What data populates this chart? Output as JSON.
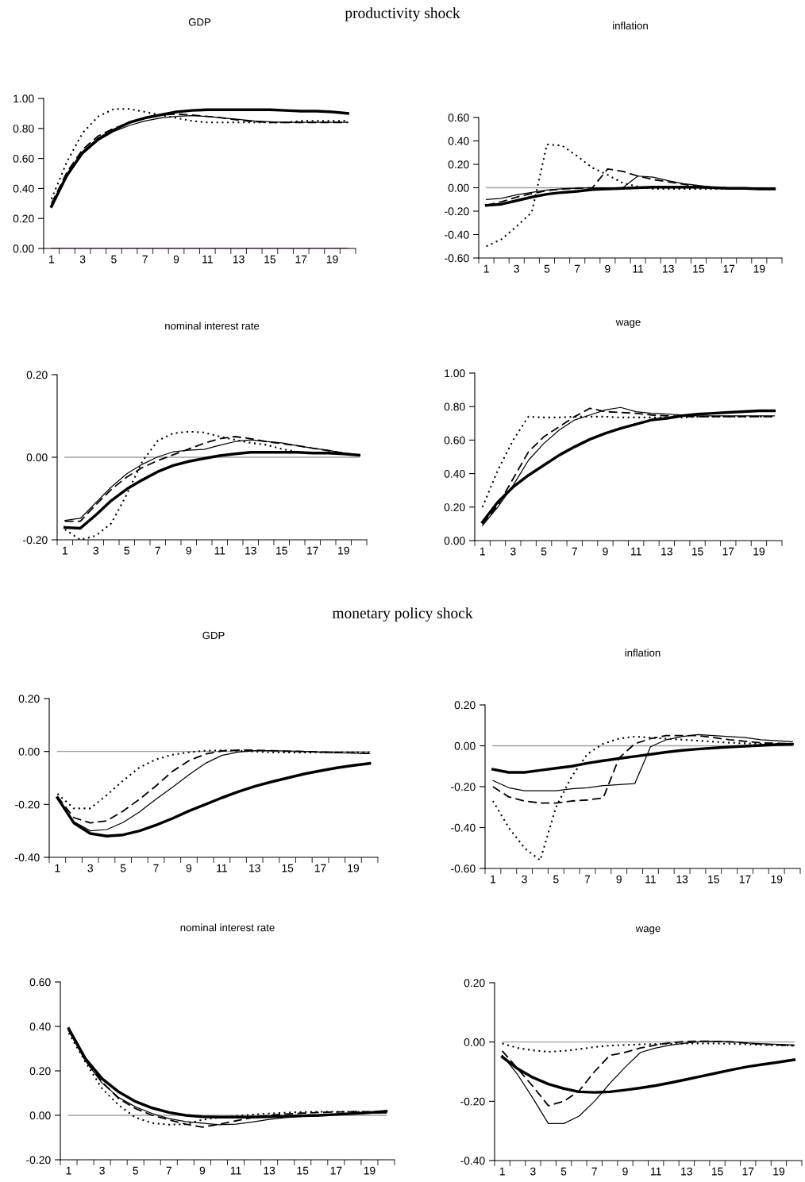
{
  "chart_data": [
    {
      "type": "line",
      "title": "GDP",
      "annotations": [
        "productivity shock"
      ],
      "categories": [
        "1",
        null,
        "3",
        null,
        "5",
        null,
        "7",
        null,
        "9",
        null,
        "11",
        null,
        "13",
        null,
        "15",
        null,
        "17",
        null,
        "19",
        null
      ],
      "ylim": [
        0,
        1
      ],
      "yticks": [
        {
          "value": 0,
          "label": "0.00"
        },
        {
          "value": 0.2,
          "label": "0.20"
        },
        {
          "value": 0.4,
          "label": "0.40"
        },
        {
          "value": 0.6,
          "label": "0.60"
        },
        {
          "value": 0.8,
          "label": "0.80"
        },
        {
          "value": 1,
          "label": "1.00"
        }
      ],
      "ref_lines": [
        {
          "axis": "y",
          "value": 0,
          "color": "#800080"
        }
      ],
      "grid": false,
      "legend": false,
      "marker": "none",
      "series": [
        {
          "color": "#000000",
          "line_style": "solid",
          "values": [
            0.28,
            0.49,
            0.64,
            0.73,
            0.79,
            0.84,
            0.87,
            0.89,
            0.91,
            0.92,
            0.925,
            0.925,
            0.925,
            0.925,
            0.925,
            0.92,
            0.915,
            0.915,
            0.91,
            0.9
          ]
        },
        {
          "color": "#000000",
          "line_style": "solid",
          "values": [
            0.29,
            0.48,
            0.63,
            0.72,
            0.78,
            0.82,
            0.85,
            0.87,
            0.88,
            0.885,
            0.88,
            0.87,
            0.86,
            0.85,
            0.845,
            0.84,
            0.84,
            0.84,
            0.84,
            0.84
          ]
        },
        {
          "color": "#000000",
          "line_style": "dashed",
          "values": [
            0.3,
            0.51,
            0.66,
            0.75,
            0.8,
            0.84,
            0.87,
            0.89,
            0.895,
            0.89,
            0.88,
            0.87,
            0.855,
            0.845,
            0.84,
            0.84,
            0.84,
            0.84,
            0.84,
            0.84
          ]
        },
        {
          "color": "#000000",
          "line_style": "dotted",
          "values": [
            0.33,
            0.58,
            0.77,
            0.88,
            0.93,
            0.93,
            0.91,
            0.89,
            0.87,
            0.85,
            0.84,
            0.84,
            0.84,
            0.84,
            0.84,
            0.84,
            0.85,
            0.85,
            0.85,
            0.85
          ]
        }
      ]
    },
    {
      "type": "line",
      "title": "inflation",
      "categories": [
        "1",
        null,
        "3",
        null,
        "5",
        null,
        "7",
        null,
        "9",
        null,
        "11",
        null,
        "13",
        null,
        "15",
        null,
        "17",
        null,
        "19",
        null
      ],
      "ylim": [
        -0.6,
        0.6
      ],
      "yticks": [
        {
          "value": -0.6,
          "label": "-0.60"
        },
        {
          "value": -0.4,
          "label": "-0.40"
        },
        {
          "value": -0.2,
          "label": "-0.20"
        },
        {
          "value": 0,
          "label": "0.00"
        },
        {
          "value": 0.2,
          "label": "0.20"
        },
        {
          "value": 0.4,
          "label": "0.40"
        },
        {
          "value": 0.6,
          "label": "0.60"
        }
      ],
      "ref_lines": [
        {
          "axis": "y",
          "value": 0,
          "color": "#a0a0a0"
        }
      ],
      "grid": false,
      "legend": false,
      "marker": "none",
      "series": [
        {
          "color": "#000000",
          "line_style": "solid",
          "values": [
            -0.15,
            -0.14,
            -0.11,
            -0.08,
            -0.055,
            -0.04,
            -0.03,
            -0.015,
            -0.01,
            -0.005,
            0,
            0.005,
            0.005,
            0.005,
            0.005,
            0,
            -0.005,
            -0.005,
            -0.01,
            -0.01
          ]
        },
        {
          "color": "#000000",
          "line_style": "solid",
          "values": [
            -0.1,
            -0.09,
            -0.06,
            -0.04,
            -0.02,
            -0.01,
            -0.005,
            0,
            0,
            0,
            0.1,
            0.09,
            0.06,
            0.035,
            0.02,
            0.005,
            0,
            0,
            -0.005,
            -0.005
          ]
        },
        {
          "color": "#000000",
          "line_style": "dashed",
          "values": [
            -0.15,
            -0.12,
            -0.08,
            -0.05,
            -0.025,
            -0.01,
            -0.005,
            0,
            0.16,
            0.14,
            0.1,
            0.07,
            0.05,
            0.03,
            0.01,
            0,
            -0.005,
            -0.005,
            -0.005,
            -0.005
          ]
        },
        {
          "color": "#000000",
          "line_style": "dotted",
          "values": [
            -0.5,
            -0.44,
            -0.33,
            -0.21,
            0.37,
            0.36,
            0.27,
            0.17,
            0.11,
            0.04,
            0.01,
            -0.01,
            -0.01,
            -0.01,
            -0.01,
            -0.01,
            -0.01,
            -0.01,
            -0.01,
            -0.01
          ]
        }
      ]
    },
    {
      "type": "line",
      "title": "nominal interest rate",
      "categories": [
        "1",
        null,
        "3",
        null,
        "5",
        null,
        "7",
        null,
        "9",
        null,
        "11",
        null,
        "13",
        null,
        "15",
        null,
        "17",
        null,
        "19",
        null
      ],
      "ylim": [
        -0.2,
        0.2
      ],
      "yticks": [
        {
          "value": -0.2,
          "label": "-0.20"
        },
        {
          "value": 0,
          "label": "0.00"
        },
        {
          "value": 0.2,
          "label": "0.20"
        }
      ],
      "ref_lines": [
        {
          "axis": "y",
          "value": 0,
          "color": "#a0a0a0"
        }
      ],
      "grid": false,
      "legend": false,
      "marker": "none",
      "series": [
        {
          "color": "#000000",
          "line_style": "solid",
          "values": [
            -0.17,
            -0.172,
            -0.14,
            -0.105,
            -0.077,
            -0.055,
            -0.035,
            -0.02,
            -0.01,
            -0.003,
            0.004,
            0.008,
            0.012,
            0.012,
            0.012,
            0.012,
            0.01,
            0.01,
            0.008,
            0.005
          ]
        },
        {
          "color": "#000000",
          "line_style": "solid",
          "values": [
            -0.153,
            -0.148,
            -0.11,
            -0.072,
            -0.04,
            -0.017,
            0.001,
            0.013,
            0.017,
            0.019,
            0.029,
            0.038,
            0.042,
            0.038,
            0.035,
            0.028,
            0.022,
            0.017,
            0.01,
            0.005
          ]
        },
        {
          "color": "#000000",
          "line_style": "dashed",
          "values": [
            -0.155,
            -0.155,
            -0.115,
            -0.078,
            -0.048,
            -0.025,
            -0.008,
            0.006,
            0.02,
            0.034,
            0.045,
            0.05,
            0.045,
            0.038,
            0.033,
            0.028,
            0.022,
            0.016,
            0.01,
            0.005
          ]
        },
        {
          "color": "#000000",
          "line_style": "dotted",
          "values": [
            -0.175,
            -0.2,
            -0.19,
            -0.16,
            -0.09,
            -0.01,
            0.04,
            0.058,
            0.062,
            0.06,
            0.05,
            0.042,
            0.035,
            0.03,
            0.02,
            0.013,
            0.01,
            0.01,
            0.008,
            0.005
          ]
        }
      ]
    },
    {
      "type": "line",
      "title": "wage",
      "categories": [
        "1",
        null,
        "3",
        null,
        "5",
        null,
        "7",
        null,
        "9",
        null,
        "11",
        null,
        "13",
        null,
        "15",
        null,
        "17",
        null,
        "19",
        null
      ],
      "ylim": [
        0,
        1
      ],
      "yticks": [
        {
          "value": 0,
          "label": "0.00"
        },
        {
          "value": 0.2,
          "label": "0.20"
        },
        {
          "value": 0.4,
          "label": "0.40"
        },
        {
          "value": 0.6,
          "label": "0.60"
        },
        {
          "value": 0.8,
          "label": "0.80"
        },
        {
          "value": 1,
          "label": "1.00"
        }
      ],
      "grid": false,
      "legend": false,
      "marker": "none",
      "series": [
        {
          "color": "#000000",
          "line_style": "solid",
          "values": [
            0.11,
            0.23,
            0.32,
            0.39,
            0.45,
            0.51,
            0.56,
            0.605,
            0.64,
            0.67,
            0.695,
            0.72,
            0.73,
            0.745,
            0.755,
            0.76,
            0.765,
            0.77,
            0.775,
            0.775
          ]
        },
        {
          "color": "#000000",
          "line_style": "solid",
          "values": [
            0.09,
            0.2,
            0.33,
            0.48,
            0.58,
            0.66,
            0.72,
            0.75,
            0.78,
            0.795,
            0.77,
            0.76,
            0.755,
            0.75,
            0.745,
            0.745,
            0.745,
            0.745,
            0.745,
            0.745
          ]
        },
        {
          "color": "#000000",
          "line_style": "dashed",
          "values": [
            0.1,
            0.21,
            0.37,
            0.53,
            0.62,
            0.68,
            0.74,
            0.79,
            0.77,
            0.765,
            0.76,
            0.75,
            0.745,
            0.74,
            0.74,
            0.74,
            0.74,
            0.74,
            0.74,
            0.74
          ]
        },
        {
          "color": "#000000",
          "line_style": "dotted",
          "values": [
            0.2,
            0.42,
            0.6,
            0.74,
            0.735,
            0.735,
            0.74,
            0.74,
            0.74,
            0.735,
            0.735,
            0.735,
            0.735,
            0.735,
            0.74,
            0.74,
            0.74,
            0.74,
            0.74,
            0.74
          ]
        }
      ]
    },
    {
      "type": "line",
      "title": "GDP",
      "annotations": [
        "monetary policy shock"
      ],
      "categories": [
        "1",
        null,
        "3",
        null,
        "5",
        null,
        "7",
        null,
        "9",
        null,
        "11",
        null,
        "13",
        null,
        "15",
        null,
        "17",
        null,
        "19",
        null
      ],
      "ylim": [
        -0.4,
        0.2
      ],
      "yticks": [
        {
          "value": -0.4,
          "label": "-0.40"
        },
        {
          "value": -0.2,
          "label": "-0.20"
        },
        {
          "value": 0,
          "label": "0.00"
        },
        {
          "value": 0.2,
          "label": "0.20"
        }
      ],
      "ref_lines": [
        {
          "axis": "y",
          "value": 0,
          "color": "#a0a0a0"
        }
      ],
      "grid": false,
      "legend": false,
      "marker": "none",
      "series": [
        {
          "color": "#000000",
          "line_style": "solid",
          "values": [
            -0.175,
            -0.27,
            -0.31,
            -0.32,
            -0.315,
            -0.3,
            -0.278,
            -0.253,
            -0.225,
            -0.2,
            -0.175,
            -0.152,
            -0.132,
            -0.115,
            -0.1,
            -0.085,
            -0.073,
            -0.062,
            -0.053,
            -0.045
          ]
        },
        {
          "color": "#000000",
          "line_style": "solid",
          "values": [
            -0.175,
            -0.265,
            -0.3,
            -0.295,
            -0.268,
            -0.228,
            -0.18,
            -0.135,
            -0.088,
            -0.045,
            -0.015,
            -0.002,
            0.003,
            0.003,
            0.002,
            0,
            -0.003,
            -0.005,
            -0.006,
            -0.008
          ]
        },
        {
          "color": "#000000",
          "line_style": "dashed",
          "values": [
            -0.17,
            -0.25,
            -0.27,
            -0.262,
            -0.225,
            -0.18,
            -0.13,
            -0.075,
            -0.035,
            -0.01,
            0.002,
            0.005,
            0.005,
            0.003,
            0.001,
            0,
            -0.002,
            -0.004,
            -0.005,
            -0.007
          ]
        },
        {
          "color": "#000000",
          "line_style": "dotted",
          "values": [
            -0.16,
            -0.215,
            -0.215,
            -0.165,
            -0.11,
            -0.06,
            -0.03,
            -0.012,
            -0.003,
            0.003,
            0.004,
            0.003,
            0,
            -0.003,
            -0.004,
            -0.004,
            -0.003,
            -0.003,
            -0.003,
            -0.003
          ]
        }
      ]
    },
    {
      "type": "line",
      "title": "inflation",
      "categories": [
        "1",
        null,
        "3",
        null,
        "5",
        null,
        "7",
        null,
        "9",
        null,
        "11",
        null,
        "13",
        null,
        "15",
        null,
        "17",
        null,
        "19",
        null
      ],
      "ylim": [
        -0.6,
        0.2
      ],
      "yticks": [
        {
          "value": -0.6,
          "label": "-0.60"
        },
        {
          "value": -0.4,
          "label": "-0.40"
        },
        {
          "value": -0.2,
          "label": "-0.20"
        },
        {
          "value": 0,
          "label": "0.00"
        },
        {
          "value": 0.2,
          "label": "0.20"
        }
      ],
      "ref_lines": [
        {
          "axis": "y",
          "value": 0,
          "color": "#a0a0a0"
        }
      ],
      "grid": false,
      "legend": false,
      "marker": "none",
      "series": [
        {
          "color": "#000000",
          "line_style": "solid",
          "values": [
            -0.115,
            -0.13,
            -0.13,
            -0.12,
            -0.11,
            -0.1,
            -0.085,
            -0.073,
            -0.062,
            -0.052,
            -0.042,
            -0.031,
            -0.022,
            -0.016,
            -0.011,
            -0.006,
            -0.002,
            0.002,
            0.006,
            0.008
          ]
        },
        {
          "color": "#000000",
          "line_style": "solid",
          "values": [
            -0.17,
            -0.205,
            -0.22,
            -0.22,
            -0.22,
            -0.21,
            -0.205,
            -0.195,
            -0.19,
            -0.185,
            -0.005,
            0.03,
            0.045,
            0.055,
            0.05,
            0.045,
            0.04,
            0.03,
            0.025,
            0.02
          ]
        },
        {
          "color": "#000000",
          "line_style": "dashed",
          "values": [
            -0.2,
            -0.25,
            -0.27,
            -0.28,
            -0.28,
            -0.27,
            -0.265,
            -0.255,
            -0.06,
            0.01,
            0.035,
            0.05,
            0.05,
            0.05,
            0.04,
            0.03,
            0.022,
            0.015,
            0.012,
            0.01
          ]
        },
        {
          "color": "#000000",
          "line_style": "dotted",
          "values": [
            -0.27,
            -0.4,
            -0.5,
            -0.56,
            -0.3,
            -0.15,
            -0.04,
            0.01,
            0.035,
            0.045,
            0.04,
            0.035,
            0.03,
            0.025,
            0.02,
            0.015,
            0.012,
            0.01,
            0.01,
            0.01
          ]
        }
      ]
    },
    {
      "type": "line",
      "title": "nominal interest rate",
      "categories": [
        "1",
        null,
        "3",
        null,
        "5",
        null,
        "7",
        null,
        "9",
        null,
        "11",
        null,
        "13",
        null,
        "15",
        null,
        "17",
        null,
        "19",
        null
      ],
      "ylim": [
        -0.2,
        0.6
      ],
      "yticks": [
        {
          "value": -0.2,
          "label": "-0.20"
        },
        {
          "value": 0,
          "label": "0.00"
        },
        {
          "value": 0.2,
          "label": "0.20"
        },
        {
          "value": 0.4,
          "label": "0.40"
        },
        {
          "value": 0.6,
          "label": "0.60"
        }
      ],
      "ref_lines": [
        {
          "axis": "y",
          "value": 0,
          "color": "#a0a0a0"
        }
      ],
      "grid": false,
      "legend": false,
      "marker": "none",
      "series": [
        {
          "color": "#000000",
          "line_style": "solid",
          "values": [
            0.39,
            0.255,
            0.165,
            0.105,
            0.062,
            0.033,
            0.013,
            0,
            -0.006,
            -0.008,
            -0.008,
            -0.008,
            -0.006,
            -0.004,
            -0.002,
            0,
            0.004,
            0.008,
            0.012,
            0.018
          ]
        },
        {
          "color": "#000000",
          "line_style": "solid",
          "values": [
            0.38,
            0.245,
            0.145,
            0.08,
            0.038,
            0.008,
            -0.015,
            -0.028,
            -0.035,
            -0.042,
            -0.04,
            -0.03,
            -0.018,
            -0.01,
            -0.005,
            -0.002,
            0.003,
            0.007,
            0.009,
            0.01
          ]
        },
        {
          "color": "#000000",
          "line_style": "dashed",
          "values": [
            0.385,
            0.25,
            0.15,
            0.075,
            0.03,
            0,
            -0.02,
            -0.04,
            -0.053,
            -0.04,
            -0.025,
            -0.01,
            0,
            0.006,
            0.01,
            0.013,
            0.015,
            0.016,
            0.016,
            0.016
          ]
        },
        {
          "color": "#000000",
          "line_style": "dotted",
          "values": [
            0.37,
            0.24,
            0.12,
            0.045,
            -0.01,
            -0.035,
            -0.042,
            -0.04,
            -0.02,
            -0.01,
            -0.003,
            0.003,
            0.008,
            0.012,
            0.015,
            0.016,
            0.016,
            0.016,
            0.014,
            0.013
          ]
        }
      ]
    },
    {
      "type": "line",
      "title": "wage",
      "categories": [
        "1",
        null,
        "3",
        null,
        "5",
        null,
        "7",
        null,
        "9",
        null,
        "11",
        null,
        "13",
        null,
        "15",
        null,
        "17",
        null,
        "19",
        null
      ],
      "ylim": [
        -0.4,
        0.2
      ],
      "yticks": [
        {
          "value": -0.4,
          "label": "-0.40"
        },
        {
          "value": -0.2,
          "label": "-0.20"
        },
        {
          "value": 0,
          "label": "0.00"
        },
        {
          "value": 0.2,
          "label": "0.20"
        }
      ],
      "ref_lines": [
        {
          "axis": "y",
          "value": 0,
          "color": "#a0a0a0"
        }
      ],
      "grid": false,
      "legend": false,
      "marker": "none",
      "series": [
        {
          "color": "#000000",
          "line_style": "solid",
          "values": [
            -0.05,
            -0.09,
            -0.12,
            -0.142,
            -0.157,
            -0.168,
            -0.17,
            -0.168,
            -0.162,
            -0.155,
            -0.147,
            -0.137,
            -0.126,
            -0.115,
            -0.104,
            -0.093,
            -0.083,
            -0.075,
            -0.068,
            -0.06
          ]
        },
        {
          "color": "#000000",
          "line_style": "solid",
          "values": [
            -0.045,
            -0.11,
            -0.19,
            -0.275,
            -0.275,
            -0.25,
            -0.2,
            -0.14,
            -0.085,
            -0.035,
            -0.02,
            -0.01,
            -0.003,
            0.002,
            0.003,
            0.001,
            -0.003,
            -0.006,
            -0.008,
            -0.01
          ]
        },
        {
          "color": "#000000",
          "line_style": "dashed",
          "values": [
            -0.03,
            -0.09,
            -0.15,
            -0.215,
            -0.2,
            -0.165,
            -0.1,
            -0.045,
            -0.035,
            -0.02,
            -0.01,
            -0.002,
            0.002,
            0.003,
            0.002,
            0,
            -0.004,
            -0.008,
            -0.01,
            -0.012
          ]
        },
        {
          "color": "#000000",
          "line_style": "dotted",
          "values": [
            -0.005,
            -0.02,
            -0.028,
            -0.033,
            -0.03,
            -0.024,
            -0.017,
            -0.012,
            -0.01,
            -0.008,
            -0.007,
            -0.006,
            -0.005,
            -0.005,
            -0.005,
            -0.006,
            -0.008,
            -0.01,
            -0.011,
            -0.012
          ]
        }
      ]
    }
  ]
}
